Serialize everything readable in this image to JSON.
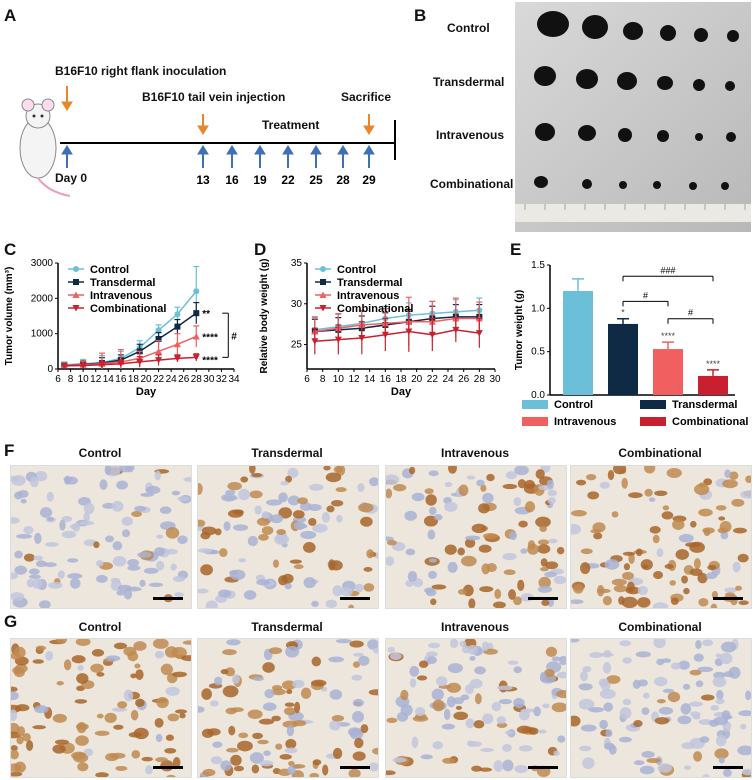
{
  "panels": {
    "a": "A",
    "b": "B",
    "c": "C",
    "d": "D",
    "e": "E",
    "f": "F",
    "g": "G"
  },
  "panel_a": {
    "inoculation": "B16F10 right flank inoculation",
    "tail_vein": "B16F10 tail vein injection",
    "sacrifice": "Sacrifice",
    "treatment": "Treatment",
    "day0": "Day 0",
    "days": [
      "13",
      "16",
      "19",
      "22",
      "25",
      "28",
      "29"
    ]
  },
  "panel_b": {
    "rows": [
      "Control",
      "Transdermal",
      "Intravenous",
      "Combinational"
    ]
  },
  "colors": {
    "control": "#6cbfd8",
    "transdermal": "#0f2a44",
    "intravenous": "#f06060",
    "combinational": "#c8202e"
  },
  "chart_data": [
    {
      "type": "line",
      "panel": "C",
      "xlabel": "Day",
      "ylabel": "Tumor volume (mm³)",
      "xlim": [
        6,
        34
      ],
      "ylim": [
        0,
        3000
      ],
      "x_ticks": [
        "6",
        "8",
        "10",
        "12",
        "14",
        "16",
        "18",
        "20",
        "22",
        "24",
        "26",
        "28",
        "30",
        "32",
        "34"
      ],
      "y_ticks": [
        "0",
        "1000",
        "2000",
        "3000"
      ],
      "x": [
        7,
        10,
        13,
        16,
        19,
        22,
        25,
        28
      ],
      "series": [
        {
          "name": "Control",
          "values": [
            120,
            150,
            180,
            300,
            600,
            1100,
            1550,
            2200
          ],
          "err": [
            80,
            120,
            200,
            200,
            200,
            150,
            200,
            700
          ]
        },
        {
          "name": "Transdermal",
          "values": [
            100,
            130,
            170,
            250,
            500,
            850,
            1200,
            1580
          ],
          "err": [
            60,
            100,
            150,
            150,
            200,
            180,
            200,
            300
          ]
        },
        {
          "name": "Intravenous",
          "values": [
            100,
            120,
            150,
            200,
            300,
            500,
            700,
            920
          ],
          "err": [
            60,
            100,
            300,
            350,
            200,
            300,
            300,
            300
          ]
        },
        {
          "name": "Combinational",
          "values": [
            90,
            100,
            120,
            150,
            200,
            250,
            300,
            330
          ],
          "err": [
            50,
            60,
            100,
            100,
            150,
            150,
            100,
            100
          ]
        }
      ],
      "annotations": [
        "**",
        "****",
        "****",
        "#"
      ]
    },
    {
      "type": "line",
      "panel": "D",
      "xlabel": "Day",
      "ylabel": "Relative body weight (g)",
      "xlim": [
        6,
        30
      ],
      "ylim": [
        22,
        35
      ],
      "x_ticks": [
        "6",
        "8",
        "10",
        "12",
        "14",
        "16",
        "18",
        "20",
        "22",
        "24",
        "26",
        "28",
        "30"
      ],
      "y_ticks": [
        "25",
        "30",
        "35"
      ],
      "x": [
        7,
        10,
        13,
        16,
        19,
        22,
        25,
        28
      ],
      "series": [
        {
          "name": "Control",
          "values": [
            26.8,
            27.2,
            27.6,
            28.2,
            28.6,
            28.8,
            29.0,
            29.2
          ],
          "err": [
            1.5,
            1.5,
            1.5,
            1.5,
            1.5,
            1.5,
            1.5,
            1.5
          ]
        },
        {
          "name": "Transdermal",
          "values": [
            26.6,
            26.8,
            27.0,
            27.4,
            27.8,
            28.2,
            28.4,
            28.4
          ],
          "err": [
            1.5,
            1.5,
            1.5,
            1.5,
            1.5,
            1.5,
            1.5,
            1.5
          ]
        },
        {
          "name": "Intravenous",
          "values": [
            26.6,
            27.0,
            27.4,
            27.6,
            27.8,
            27.8,
            28.2,
            28.2
          ],
          "err": [
            1.8,
            1.8,
            1.8,
            1.8,
            3.0,
            2.5,
            2.5,
            2.0
          ]
        },
        {
          "name": "Combinational",
          "values": [
            25.4,
            25.6,
            25.8,
            26.2,
            26.6,
            26.2,
            26.8,
            26.4
          ],
          "err": [
            1.6,
            1.8,
            2.0,
            2.0,
            2.5,
            2.0,
            1.5,
            1.8
          ]
        }
      ]
    },
    {
      "type": "bar",
      "panel": "E",
      "ylabel": "Tumor weight (g)",
      "ylim": [
        0,
        1.5
      ],
      "y_ticks": [
        "0.0",
        "0.5",
        "1.0",
        "1.5"
      ],
      "categories": [
        "Control",
        "Transdermal",
        "Intravenous",
        "Combinational"
      ],
      "values": [
        1.2,
        0.82,
        0.53,
        0.22
      ],
      "err": [
        0.14,
        0.06,
        0.08,
        0.07
      ],
      "bar_labels": [
        "",
        "*",
        "****",
        "****"
      ],
      "brackets": [
        "###",
        "#",
        "#"
      ]
    }
  ],
  "panel_f": {
    "titles": [
      "Control",
      "Transdermal",
      "Intravenous",
      "Combinational"
    ]
  },
  "panel_g": {
    "titles": [
      "Control",
      "Transdermal",
      "Intravenous",
      "Combinational"
    ]
  }
}
